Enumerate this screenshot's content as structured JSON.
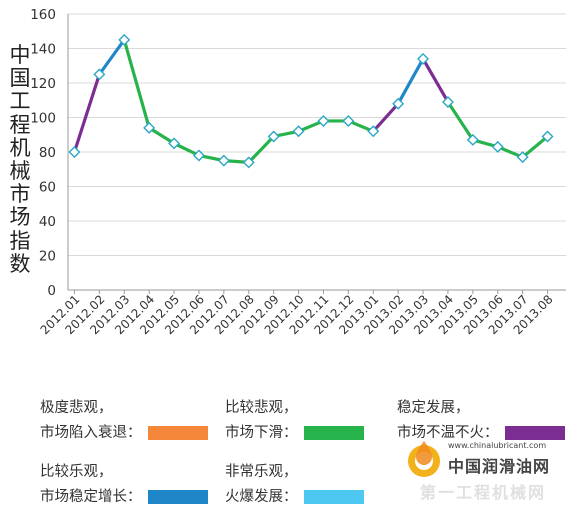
{
  "chart_data": {
    "type": "line",
    "ylabel": "中国工程机械市场指数",
    "ylim": [
      0,
      160
    ],
    "yticks": [
      0,
      20,
      40,
      60,
      80,
      100,
      120,
      140,
      160
    ],
    "grid": true,
    "categories": [
      "2012.01",
      "2012.02",
      "2012.03",
      "2012.04",
      "2012.05",
      "2012.06",
      "2012.07",
      "2012.08",
      "2012.09",
      "2012.10",
      "2012.11",
      "2012.12",
      "2013.01",
      "2013.02",
      "2013.03",
      "2013.04",
      "2013.05",
      "2013.06",
      "2013.07",
      "2013.08"
    ],
    "values": [
      80,
      125,
      145,
      94,
      85,
      78,
      75,
      74,
      89,
      92,
      98,
      98,
      92,
      108,
      134,
      109,
      87,
      83,
      77,
      89
    ],
    "segment_colors": [
      "#7b2d91",
      "#7b2d91",
      "#1f86c8",
      "#27b34b",
      "#27b34b",
      "#27b34b",
      "#27b34b",
      "#27b34b",
      "#27b34b",
      "#27b34b",
      "#27b34b",
      "#27b34b",
      "#27b34b",
      "#7b2d91",
      "#1f86c8",
      "#7b2d91",
      "#27b34b",
      "#27b34b",
      "#27b34b",
      "#27b34b"
    ]
  },
  "legend": [
    {
      "line1": "极度悲观，",
      "line2": "市场陷入衰退：",
      "color": "#f5873a"
    },
    {
      "line1": "比较悲观，",
      "line2": "市场下滑：",
      "color": "#27b34b"
    },
    {
      "line1": "稳定发展，",
      "line2": "市场不温不火：",
      "color": "#7b2d91"
    },
    {
      "line1": "比较乐观，",
      "line2": "市场稳定增长：",
      "color": "#1f86c8"
    },
    {
      "line1": "非常乐观，",
      "line2": "火爆发展：",
      "color": "#4dc8f0"
    }
  ],
  "watermark": {
    "url": "www.chinalubricant.com",
    "name": "中国润滑油网",
    "sub": "第一工程机械网"
  }
}
